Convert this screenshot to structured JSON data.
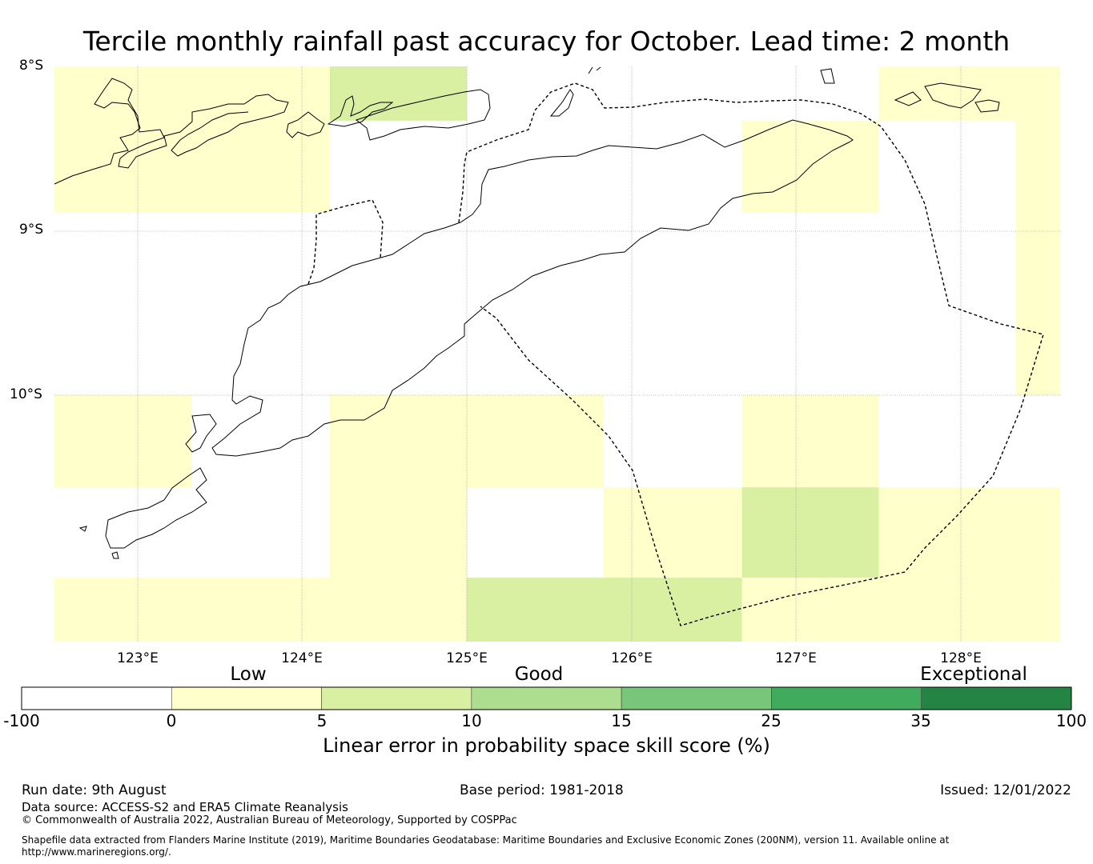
{
  "title": "Tercile monthly rainfall past accuracy for October. Lead time: 2 month",
  "map": {
    "lat_labels": [
      "8°S",
      "9°S",
      "10°S"
    ],
    "lon_labels": [
      "123°E",
      "124°E",
      "125°E",
      "126°E",
      "127°E",
      "128°E"
    ],
    "extent": {
      "lon_min": 122.5,
      "lon_max": 128.6,
      "lat_min": -11.5,
      "lat_max": -8.0
    },
    "grid_cells": [
      {
        "lon": [
          122.5,
          124.17
        ],
        "lat": [
          -8.0,
          -8.89
        ],
        "category": "0-5"
      },
      {
        "lon": [
          124.17,
          125.0
        ],
        "lat": [
          -8.0,
          -8.33
        ],
        "category": "5-10"
      },
      {
        "lon": [
          127.5,
          128.6
        ],
        "lat": [
          -8.0,
          -8.33
        ],
        "category": "0-5"
      },
      {
        "lon": [
          126.67,
          127.5
        ],
        "lat": [
          -8.33,
          -8.89
        ],
        "category": "0-5"
      },
      {
        "lon": [
          128.33,
          128.6
        ],
        "lat": [
          -8.33,
          -10.0
        ],
        "category": "0-5"
      },
      {
        "lon": [
          122.5,
          123.33
        ],
        "lat": [
          -10.0,
          -10.56
        ],
        "category": "0-5"
      },
      {
        "lon": [
          124.17,
          125.83
        ],
        "lat": [
          -10.0,
          -10.56
        ],
        "category": "0-5"
      },
      {
        "lon": [
          126.67,
          127.5
        ],
        "lat": [
          -10.0,
          -10.56
        ],
        "category": "0-5"
      },
      {
        "lon": [
          124.17,
          125.0
        ],
        "lat": [
          -10.56,
          -11.11
        ],
        "category": "0-5"
      },
      {
        "lon": [
          125.83,
          126.67
        ],
        "lat": [
          -10.56,
          -11.11
        ],
        "category": "0-5"
      },
      {
        "lon": [
          126.67,
          127.5
        ],
        "lat": [
          -10.56,
          -11.11
        ],
        "category": "5-10"
      },
      {
        "lon": [
          127.5,
          128.6
        ],
        "lat": [
          -10.56,
          -11.11
        ],
        "category": "0-5"
      },
      {
        "lon": [
          122.5,
          125.0
        ],
        "lat": [
          -11.11,
          -11.5
        ],
        "category": "0-5"
      },
      {
        "lon": [
          125.0,
          126.67
        ],
        "lat": [
          -11.11,
          -11.5
        ],
        "category": "5-10"
      },
      {
        "lon": [
          126.67,
          128.6
        ],
        "lat": [
          -11.11,
          -11.5
        ],
        "category": "0-5"
      }
    ]
  },
  "colorbar": {
    "groups": [
      "Low",
      "Good",
      "Exceptional"
    ],
    "ticks": [
      "-100",
      "0",
      "5",
      "10",
      "15",
      "25",
      "35",
      "100"
    ],
    "colors": [
      "#ffffff",
      "#ffffcc",
      "#d9f0a3",
      "#addd8e",
      "#78c679",
      "#41ab5d",
      "#238443"
    ],
    "label": "Linear error in probability space skill score (%)"
  },
  "footer": {
    "run_date": "Run date: 9th August",
    "base_period": "Base period: 1981-2018",
    "issued": "Issued: 12/01/2022",
    "data_source": "Data source: ACCESS-S2 and ERA5 Climate Reanalysis",
    "copyright": "© Commonwealth of Australia 2022, Australian Bureau of Meteorology, Supported by COSPPac",
    "shapefile": "Shapefile data extracted from Flanders Marine Institute (2019), Maritime Boundaries Geodatabase: Maritime Boundaries and Exclusive Economic Zones (200NM), version 11. Available online at http://www.marineregions.org/."
  }
}
